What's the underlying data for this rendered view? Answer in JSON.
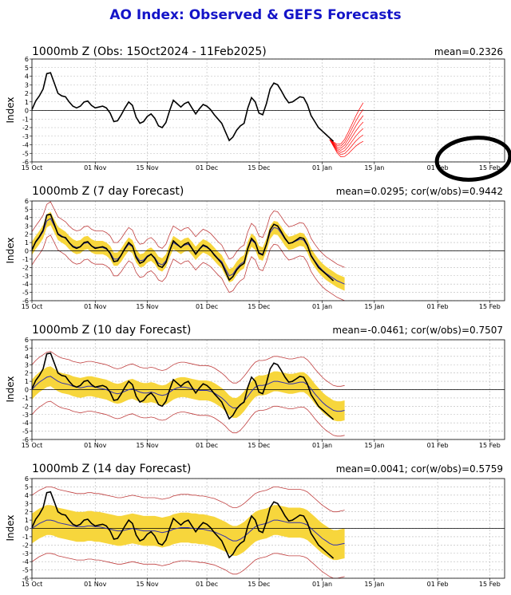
{
  "page": {
    "title": "AO Index: Observed & GEFS Forecasts"
  },
  "chart_data": [
    {
      "type": "line",
      "title": "1000mb Z (Obs: 15Oct2024 - 11Feb2025)",
      "stat": "mean=0.2326",
      "ylabel": "Index",
      "ylim": [
        -6,
        6
      ],
      "yticks": [
        -6,
        -5,
        -4,
        -3,
        -2,
        -1,
        0,
        1,
        2,
        3,
        4,
        5,
        6
      ],
      "xlim": [
        0,
        127
      ],
      "xticks": [
        {
          "x": 0,
          "label": "15 Oct"
        },
        {
          "x": 17,
          "label": "01 Nov"
        },
        {
          "x": 31,
          "label": "15 Nov"
        },
        {
          "x": 47,
          "label": "01 Dec"
        },
        {
          "x": 61,
          "label": "15 Dec"
        },
        {
          "x": 78,
          "label": "01 Jan"
        },
        {
          "x": 92,
          "label": "15 Jan"
        },
        {
          "x": 109,
          "label": "01 Feb"
        },
        {
          "x": 123,
          "label": "15 Feb"
        }
      ],
      "grid": true,
      "series": [
        {
          "role": "observed",
          "color": "#000000",
          "values": [
            0.1,
            1.1,
            1.7,
            2.5,
            4.3,
            4.4,
            3.2,
            2.0,
            1.7,
            1.6,
            1.0,
            0.5,
            0.3,
            0.5,
            1.0,
            1.1,
            0.6,
            0.3,
            0.4,
            0.5,
            0.3,
            -0.3,
            -1.3,
            -1.2,
            -0.5,
            0.3,
            1.0,
            0.6,
            -0.8,
            -1.5,
            -1.3,
            -0.7,
            -0.4,
            -0.9,
            -1.8,
            -2.0,
            -1.4,
            0.0,
            1.2,
            0.8,
            0.4,
            0.8,
            1.0,
            0.3,
            -0.4,
            0.2,
            0.7,
            0.5,
            0.1,
            -0.5,
            -1.0,
            -1.5,
            -2.5,
            -3.5,
            -3.1,
            -2.3,
            -1.8,
            -1.5,
            0.3,
            1.5,
            1.0,
            -0.3,
            -0.5,
            0.8,
            2.5,
            3.2,
            3.0,
            2.3,
            1.5,
            0.9,
            1.0,
            1.3,
            1.6,
            1.5,
            0.7,
            -0.6,
            -1.3,
            -2.0,
            -2.4,
            -2.8,
            -3.2,
            -3.6
          ]
        },
        {
          "role": "forecast-ensemble",
          "color": "#ff0000",
          "start": 80,
          "values": [
            -3.4,
            -4.0,
            -4.6,
            -4.9,
            -4.7,
            -4.2,
            -3.6,
            -3.0,
            -2.5,
            -2.1
          ]
        }
      ]
    },
    {
      "type": "line",
      "title": "1000mb Z (7 day Forecast)",
      "stat": "mean=0.0295; cor(w/obs)=0.9442",
      "ylabel": "Index",
      "ylim": [
        -6,
        6
      ],
      "yticks": [
        -6,
        -5,
        -4,
        -3,
        -2,
        -1,
        0,
        1,
        2,
        3,
        4,
        5,
        6
      ],
      "xlim": [
        0,
        127
      ],
      "xticks": [
        {
          "x": 0,
          "label": "15 Oct"
        },
        {
          "x": 17,
          "label": "01 Nov"
        },
        {
          "x": 31,
          "label": "15 Nov"
        },
        {
          "x": 47,
          "label": "01 Dec"
        },
        {
          "x": 61,
          "label": "15 Dec"
        },
        {
          "x": 78,
          "label": "01 Jan"
        },
        {
          "x": 92,
          "label": "15 Jan"
        },
        {
          "x": 109,
          "label": "01 Feb"
        },
        {
          "x": 123,
          "label": "15 Feb"
        }
      ],
      "grid": true,
      "spread": 0.8,
      "band": 2.0,
      "series": [
        {
          "role": "observed",
          "color": "#000000",
          "values": [
            0.1,
            1.1,
            1.7,
            2.5,
            4.3,
            4.4,
            3.2,
            2.0,
            1.7,
            1.6,
            1.0,
            0.5,
            0.3,
            0.5,
            1.0,
            1.1,
            0.6,
            0.3,
            0.4,
            0.5,
            0.3,
            -0.3,
            -1.3,
            -1.2,
            -0.5,
            0.3,
            1.0,
            0.6,
            -0.8,
            -1.5,
            -1.3,
            -0.7,
            -0.4,
            -0.9,
            -1.8,
            -2.0,
            -1.4,
            0.0,
            1.2,
            0.8,
            0.4,
            0.8,
            1.0,
            0.3,
            -0.4,
            0.2,
            0.7,
            0.5,
            0.1,
            -0.5,
            -1.0,
            -1.5,
            -2.5,
            -3.5,
            -3.1,
            -2.3,
            -1.8,
            -1.5,
            0.3,
            1.5,
            1.0,
            -0.3,
            -0.5,
            0.8,
            2.5,
            3.2,
            3.0,
            2.3,
            1.5,
            0.9,
            1.0,
            1.3,
            1.6,
            1.5,
            0.7,
            -0.6,
            -1.3,
            -2.0,
            -2.4,
            -2.8,
            -3.2,
            -3.6
          ]
        },
        {
          "role": "ensemble-mean",
          "color": "#3030b0",
          "values": [
            0.3,
            1.0,
            1.6,
            2.3,
            3.6,
            3.9,
            3.0,
            2.1,
            1.8,
            1.5,
            1.0,
            0.6,
            0.4,
            0.5,
            0.9,
            1.0,
            0.6,
            0.4,
            0.4,
            0.4,
            0.2,
            -0.2,
            -1.0,
            -1.0,
            -0.5,
            0.2,
            0.8,
            0.5,
            -0.6,
            -1.2,
            -1.1,
            -0.6,
            -0.4,
            -0.8,
            -1.5,
            -1.7,
            -1.2,
            0.0,
            1.0,
            0.7,
            0.4,
            0.7,
            0.8,
            0.3,
            -0.3,
            0.2,
            0.6,
            0.4,
            0.1,
            -0.4,
            -0.9,
            -1.3,
            -2.2,
            -3.0,
            -2.8,
            -2.1,
            -1.6,
            -1.3,
            0.3,
            1.3,
            0.9,
            -0.2,
            -0.4,
            0.7,
            2.2,
            2.8,
            2.7,
            2.1,
            1.4,
            0.9,
            1.0,
            1.2,
            1.4,
            1.3,
            0.6,
            -0.5,
            -1.2,
            -1.8,
            -2.3,
            -2.7,
            -3.0,
            -3.3,
            -3.6,
            -3.8,
            -4.0
          ]
        }
      ]
    },
    {
      "type": "line",
      "title": "1000mb Z (10 day Forecast)",
      "stat": "mean=-0.0461; cor(w/obs)=0.7507",
      "ylabel": "Index",
      "ylim": [
        -6,
        6
      ],
      "yticks": [
        -6,
        -5,
        -4,
        -3,
        -2,
        -1,
        0,
        1,
        2,
        3,
        4,
        5,
        6
      ],
      "xlim": [
        0,
        127
      ],
      "xticks": [
        {
          "x": 0,
          "label": "15 Oct"
        },
        {
          "x": 17,
          "label": "01 Nov"
        },
        {
          "x": 31,
          "label": "15 Nov"
        },
        {
          "x": 47,
          "label": "01 Dec"
        },
        {
          "x": 61,
          "label": "15 Dec"
        },
        {
          "x": 78,
          "label": "01 Jan"
        },
        {
          "x": 92,
          "label": "15 Jan"
        },
        {
          "x": 109,
          "label": "01 Feb"
        },
        {
          "x": 123,
          "label": "15 Feb"
        }
      ],
      "grid": true,
      "spread": 1.2,
      "band": 3.0,
      "series": [
        {
          "role": "observed",
          "color": "#000000",
          "values": [
            0.1,
            1.1,
            1.7,
            2.5,
            4.3,
            4.4,
            3.2,
            2.0,
            1.7,
            1.6,
            1.0,
            0.5,
            0.3,
            0.5,
            1.0,
            1.1,
            0.6,
            0.3,
            0.4,
            0.5,
            0.3,
            -0.3,
            -1.3,
            -1.2,
            -0.5,
            0.3,
            1.0,
            0.6,
            -0.8,
            -1.5,
            -1.3,
            -0.7,
            -0.4,
            -0.9,
            -1.8,
            -2.0,
            -1.4,
            0.0,
            1.2,
            0.8,
            0.4,
            0.8,
            1.0,
            0.3,
            -0.4,
            0.2,
            0.7,
            0.5,
            0.1,
            -0.5,
            -1.0,
            -1.5,
            -2.5,
            -3.5,
            -3.1,
            -2.3,
            -1.8,
            -1.5,
            0.3,
            1.5,
            1.0,
            -0.3,
            -0.5,
            0.8,
            2.5,
            3.2,
            3.0,
            2.3,
            1.5,
            0.9,
            1.0,
            1.3,
            1.6,
            1.5,
            0.7,
            -0.6,
            -1.3,
            -2.0,
            -2.4,
            -2.8,
            -3.2,
            -3.6
          ]
        },
        {
          "role": "ensemble-mean",
          "color": "#3030b0",
          "values": [
            0.0,
            0.5,
            0.9,
            1.2,
            1.5,
            1.6,
            1.3,
            1.0,
            0.8,
            0.7,
            0.6,
            0.4,
            0.3,
            0.2,
            0.3,
            0.4,
            0.4,
            0.3,
            0.2,
            0.1,
            0.0,
            -0.2,
            -0.4,
            -0.5,
            -0.4,
            -0.2,
            0.0,
            0.1,
            -0.1,
            -0.3,
            -0.4,
            -0.4,
            -0.3,
            -0.4,
            -0.6,
            -0.7,
            -0.6,
            -0.3,
            0.0,
            0.2,
            0.3,
            0.3,
            0.2,
            0.1,
            0.0,
            -0.1,
            -0.1,
            -0.1,
            -0.2,
            -0.4,
            -0.7,
            -1.0,
            -1.4,
            -1.9,
            -2.2,
            -2.2,
            -1.9,
            -1.4,
            -0.8,
            -0.2,
            0.3,
            0.5,
            0.5,
            0.6,
            0.8,
            1.0,
            1.0,
            0.9,
            0.8,
            0.7,
            0.7,
            0.8,
            0.9,
            0.9,
            0.6,
            0.1,
            -0.5,
            -1.0,
            -1.5,
            -1.9,
            -2.2,
            -2.5,
            -2.6,
            -2.6,
            -2.5
          ]
        }
      ]
    },
    {
      "type": "line",
      "title": "1000mb Z (14 day Forecast)",
      "stat": "mean=0.0041; cor(w/obs)=0.5759",
      "ylabel": "Index",
      "ylim": [
        -6,
        6
      ],
      "yticks": [
        -6,
        -5,
        -4,
        -3,
        -2,
        -1,
        0,
        1,
        2,
        3,
        4,
        5,
        6
      ],
      "xlim": [
        0,
        127
      ],
      "xticks": [
        {
          "x": 0,
          "label": "15 Oct"
        },
        {
          "x": 17,
          "label": "01 Nov"
        },
        {
          "x": 31,
          "label": "15 Nov"
        },
        {
          "x": 47,
          "label": "01 Dec"
        },
        {
          "x": 61,
          "label": "15 Dec"
        },
        {
          "x": 78,
          "label": "01 Jan"
        },
        {
          "x": 92,
          "label": "15 Jan"
        },
        {
          "x": 109,
          "label": "01 Feb"
        },
        {
          "x": 123,
          "label": "15 Feb"
        }
      ],
      "grid": true,
      "spread": 1.8,
      "band": 4.0,
      "series": [
        {
          "role": "observed",
          "color": "#000000",
          "values": [
            0.1,
            1.1,
            1.7,
            2.5,
            4.3,
            4.4,
            3.2,
            2.0,
            1.7,
            1.6,
            1.0,
            0.5,
            0.3,
            0.5,
            1.0,
            1.1,
            0.6,
            0.3,
            0.4,
            0.5,
            0.3,
            -0.3,
            -1.3,
            -1.2,
            -0.5,
            0.3,
            1.0,
            0.6,
            -0.8,
            -1.5,
            -1.3,
            -0.7,
            -0.4,
            -0.9,
            -1.8,
            -2.0,
            -1.4,
            0.0,
            1.2,
            0.8,
            0.4,
            0.8,
            1.0,
            0.3,
            -0.4,
            0.2,
            0.7,
            0.5,
            0.1,
            -0.5,
            -1.0,
            -1.5,
            -2.5,
            -3.5,
            -3.1,
            -2.3,
            -1.8,
            -1.5,
            0.3,
            1.5,
            1.0,
            -0.3,
            -0.5,
            0.8,
            2.5,
            3.2,
            3.0,
            2.3,
            1.5,
            0.9,
            1.0,
            1.3,
            1.6,
            1.5,
            0.7,
            -0.6,
            -1.3,
            -2.0,
            -2.4,
            -2.8,
            -3.2,
            -3.6
          ]
        },
        {
          "role": "ensemble-mean",
          "color": "#3030b0",
          "values": [
            0.0,
            0.3,
            0.6,
            0.8,
            1.0,
            1.0,
            0.9,
            0.7,
            0.6,
            0.5,
            0.4,
            0.3,
            0.2,
            0.2,
            0.2,
            0.3,
            0.3,
            0.2,
            0.2,
            0.1,
            0.0,
            -0.1,
            -0.2,
            -0.3,
            -0.3,
            -0.2,
            -0.1,
            0.0,
            -0.1,
            -0.2,
            -0.3,
            -0.3,
            -0.3,
            -0.3,
            -0.4,
            -0.5,
            -0.4,
            -0.3,
            -0.1,
            0.0,
            0.1,
            0.1,
            0.1,
            0.0,
            0.0,
            -0.1,
            -0.1,
            -0.2,
            -0.3,
            -0.4,
            -0.6,
            -0.8,
            -1.0,
            -1.3,
            -1.5,
            -1.5,
            -1.3,
            -1.0,
            -0.6,
            -0.2,
            0.2,
            0.4,
            0.5,
            0.6,
            0.8,
            1.0,
            1.0,
            0.9,
            0.8,
            0.7,
            0.7,
            0.7,
            0.7,
            0.6,
            0.4,
            0.0,
            -0.4,
            -0.8,
            -1.2,
            -1.5,
            -1.8,
            -2.0,
            -2.0,
            -1.9,
            -1.8
          ]
        }
      ]
    }
  ]
}
